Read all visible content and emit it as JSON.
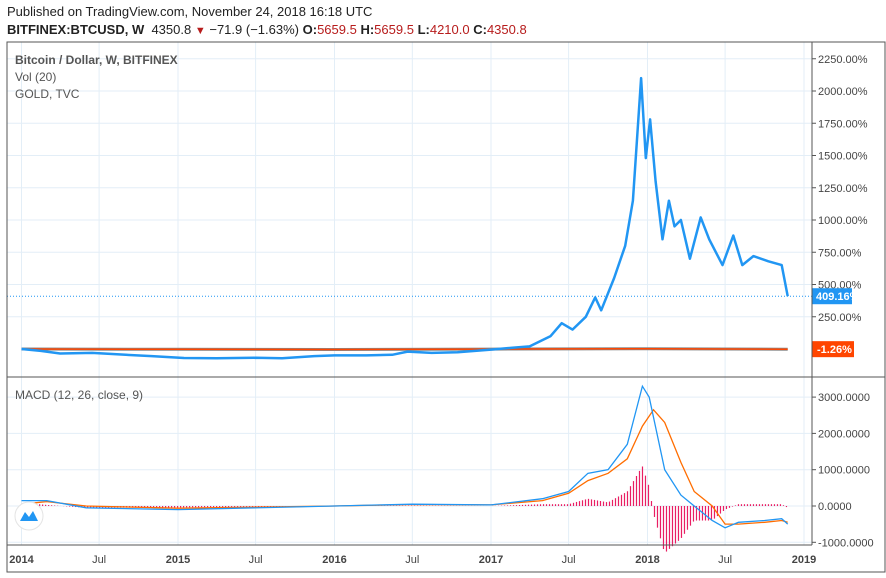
{
  "header": {
    "published": "Published on TradingView.com, November 24, 2018 16:18 UTC",
    "symbol": "BITFINEX:BTCUSD, W",
    "last": "4350.8",
    "change": "−71.9 (−1.63%)",
    "o_label": "O:",
    "o": "5659.5",
    "h_label": "H:",
    "h": "5659.5",
    "l_label": "L:",
    "l": "4210.0",
    "c_label": "C:",
    "c": "4350.8"
  },
  "legend": {
    "main": "Bitcoin / Dollar, W, BITFINEX",
    "vol": "Vol (20)",
    "gold": "GOLD, TVC",
    "macd": "MACD (12, 26, close, 9)"
  },
  "colors": {
    "btc": "#2196f3",
    "gold": "#ff4500",
    "macd": "#2196f3",
    "signal": "#ff6d00",
    "hist": "#e91e63",
    "grid": "#e3eef7"
  },
  "chart_data": [
    {
      "type": "line",
      "pane": "main",
      "yunit": "%",
      "ylim": [
        -100,
        2400
      ],
      "yticks": [
        "2250.00%",
        "2000.00%",
        "1750.00%",
        "1500.00%",
        "1250.00%",
        "1000.00%",
        "750.00%",
        "500.00%",
        "250.00%"
      ],
      "ytick_values": [
        2250,
        2000,
        1750,
        1500,
        1250,
        1000,
        750,
        500,
        250
      ],
      "last_labels": {
        "btc": "409.16%",
        "gold": "-1.26%"
      },
      "series": [
        {
          "key": "btc",
          "x": [
            "2014-01-01",
            "2014-02-15",
            "2014-04-01",
            "2014-06-15",
            "2014-09-01",
            "2014-11-01",
            "2015-01-15",
            "2015-04-01",
            "2015-07-01",
            "2015-09-01",
            "2015-11-15",
            "2016-01-01",
            "2016-03-15",
            "2016-05-15",
            "2016-06-20",
            "2016-08-15",
            "2016-10-15",
            "2017-01-01",
            "2017-02-20",
            "2017-04-01",
            "2017-05-20",
            "2017-06-15",
            "2017-07-10",
            "2017-08-10",
            "2017-09-01",
            "2017-09-15",
            "2017-10-15",
            "2017-11-10",
            "2017-11-28",
            "2017-12-17",
            "2017-12-28",
            "2018-01-07",
            "2018-01-20",
            "2018-02-05",
            "2018-02-20",
            "2018-03-05",
            "2018-03-20",
            "2018-04-10",
            "2018-05-05",
            "2018-05-25",
            "2018-06-25",
            "2018-07-20",
            "2018-08-10",
            "2018-09-05",
            "2018-10-10",
            "2018-11-10",
            "2018-11-24"
          ],
          "y": [
            0,
            -15,
            -35,
            -30,
            -45,
            -55,
            -70,
            -72,
            -68,
            -72,
            -55,
            -50,
            -50,
            -45,
            -20,
            -30,
            -25,
            -5,
            10,
            20,
            100,
            200,
            150,
            250,
            400,
            300,
            550,
            800,
            1150,
            2100,
            1480,
            1780,
            1300,
            850,
            1150,
            950,
            1000,
            700,
            1020,
            850,
            650,
            880,
            650,
            720,
            680,
            650,
            409.16
          ]
        },
        {
          "key": "gold",
          "x": [
            "2014-01-01",
            "2015-01-01",
            "2016-01-01",
            "2017-01-01",
            "2018-01-01",
            "2018-11-24"
          ],
          "y": [
            0,
            -2,
            -4,
            -1,
            2,
            -1.26
          ]
        }
      ]
    },
    {
      "type": "macd",
      "pane": "macd",
      "ylim": [
        -1100,
        3400
      ],
      "yticks": [
        "3000.0000",
        "2000.0000",
        "1000.0000",
        "0.0000",
        "-1000.0000"
      ],
      "ytick_values": [
        3000,
        2000,
        1000,
        0,
        -1000
      ],
      "series": [
        {
          "key": "macd",
          "x": [
            "2014-01-01",
            "2014-03-01",
            "2014-06-01",
            "2015-01-01",
            "2016-01-01",
            "2016-07-01",
            "2017-01-01",
            "2017-05-01",
            "2017-07-01",
            "2017-08-15",
            "2017-10-01",
            "2017-11-15",
            "2017-12-20",
            "2018-01-05",
            "2018-02-10",
            "2018-03-20",
            "2018-04-20",
            "2018-06-01",
            "2018-07-01",
            "2018-08-01",
            "2018-10-01",
            "2018-11-10",
            "2018-11-24"
          ],
          "y": [
            150,
            150,
            -50,
            -100,
            0,
            50,
            30,
            200,
            400,
            900,
            1000,
            1700,
            3300,
            3000,
            1000,
            300,
            0,
            -400,
            -600,
            -450,
            -400,
            -350,
            -500
          ]
        },
        {
          "key": "signal",
          "x": [
            "2014-01-01",
            "2014-03-01",
            "2014-06-01",
            "2015-01-01",
            "2016-01-01",
            "2016-07-01",
            "2017-01-01",
            "2017-05-01",
            "2017-07-01",
            "2017-08-15",
            "2017-10-01",
            "2017-11-15",
            "2017-12-20",
            "2018-01-15",
            "2018-02-10",
            "2018-03-20",
            "2018-04-20",
            "2018-06-01",
            "2018-07-01",
            "2018-08-01",
            "2018-10-01",
            "2018-11-10",
            "2018-11-24"
          ],
          "y": [
            50,
            120,
            0,
            -60,
            0,
            40,
            30,
            150,
            350,
            700,
            900,
            1300,
            2200,
            2650,
            2300,
            1200,
            400,
            0,
            -500,
            -500,
            -450,
            -400,
            -450
          ]
        }
      ]
    }
  ],
  "time_axis": {
    "labels": [
      "2014",
      "Jul",
      "2015",
      "Jul",
      "2016",
      "Jul",
      "2017",
      "Jul",
      "2018",
      "Jul",
      "2019"
    ],
    "dates": [
      "2014-01-01",
      "2014-07-01",
      "2015-01-01",
      "2015-07-01",
      "2016-01-01",
      "2016-07-01",
      "2017-01-01",
      "2017-07-01",
      "2018-01-01",
      "2018-07-01",
      "2019-01-01"
    ]
  }
}
